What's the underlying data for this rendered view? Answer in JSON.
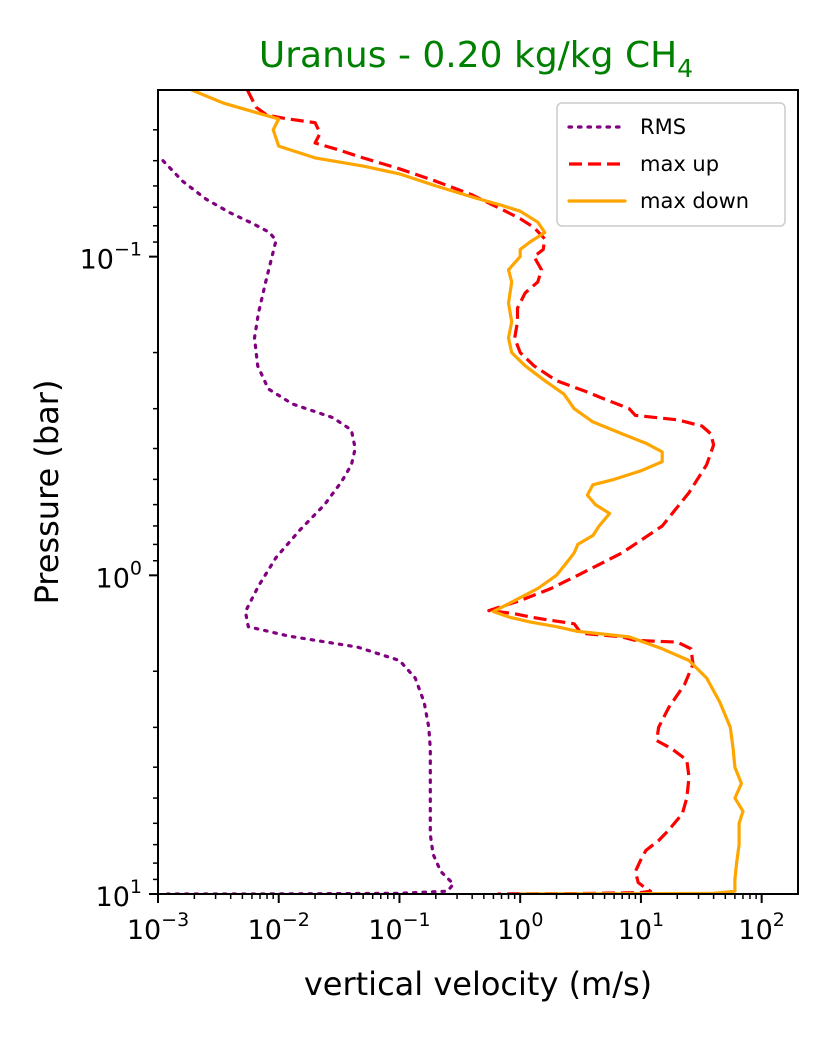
{
  "chart_data": {
    "type": "line",
    "title": "Uranus - 0.20 kg/kg CH",
    "title_subscript": "4",
    "title_color": "#008000",
    "xlabel": "vertical velocity (m/s)",
    "ylabel": "Pressure (bar)",
    "xscale": "log",
    "yscale": "log",
    "y_inverted": true,
    "xlim": [
      0.001,
      200
    ],
    "ylim": [
      10,
      0.03
    ],
    "x_ticks": [
      {
        "value": 0.001,
        "base": "10",
        "exp": "−3"
      },
      {
        "value": 0.01,
        "base": "10",
        "exp": "−2"
      },
      {
        "value": 0.1,
        "base": "10",
        "exp": "−1"
      },
      {
        "value": 1,
        "base": "10",
        "exp": "0"
      },
      {
        "value": 10,
        "base": "10",
        "exp": "1"
      },
      {
        "value": 100,
        "base": "10",
        "exp": "2"
      }
    ],
    "y_ticks": [
      {
        "value": 0.1,
        "base": "10",
        "exp": "−1"
      },
      {
        "value": 1,
        "base": "10",
        "exp": "0"
      },
      {
        "value": 10,
        "base": "10",
        "exp": "1"
      }
    ],
    "legend_position": "top-right",
    "series": [
      {
        "name": "RMS",
        "color": "#800080",
        "style": "dotted",
        "points": [
          [
            0.0011,
            0.05
          ],
          [
            0.0016,
            0.058
          ],
          [
            0.0025,
            0.066
          ],
          [
            0.004,
            0.073
          ],
          [
            0.0062,
            0.079
          ],
          [
            0.0084,
            0.084
          ],
          [
            0.0095,
            0.089
          ],
          [
            0.0088,
            0.1
          ],
          [
            0.0078,
            0.12
          ],
          [
            0.0068,
            0.15
          ],
          [
            0.0063,
            0.18
          ],
          [
            0.0067,
            0.22
          ],
          [
            0.0082,
            0.26
          ],
          [
            0.013,
            0.29
          ],
          [
            0.028,
            0.32
          ],
          [
            0.04,
            0.35
          ],
          [
            0.043,
            0.4
          ],
          [
            0.04,
            0.45
          ],
          [
            0.033,
            0.51
          ],
          [
            0.024,
            0.6
          ],
          [
            0.015,
            0.72
          ],
          [
            0.0095,
            0.88
          ],
          [
            0.0068,
            1.08
          ],
          [
            0.0053,
            1.3
          ],
          [
            0.0056,
            1.45
          ],
          [
            0.012,
            1.55
          ],
          [
            0.045,
            1.68
          ],
          [
            0.1,
            1.85
          ],
          [
            0.135,
            2.1
          ],
          [
            0.16,
            2.5
          ],
          [
            0.175,
            3.0
          ],
          [
            0.18,
            3.5
          ],
          [
            0.18,
            4.5
          ],
          [
            0.18,
            5.5
          ],
          [
            0.18,
            6.5
          ],
          [
            0.19,
            7.5
          ],
          [
            0.22,
            8.5
          ],
          [
            0.28,
            9.3
          ],
          [
            0.25,
            9.8
          ],
          [
            0.1,
            9.95
          ],
          [
            0.01,
            9.99
          ],
          [
            0.0012,
            10.0
          ]
        ]
      },
      {
        "name": "max up",
        "color": "#ff0000",
        "style": "dashed",
        "points": [
          [
            0.0055,
            0.03
          ],
          [
            0.0065,
            0.034
          ],
          [
            0.008,
            0.036
          ],
          [
            0.012,
            0.037
          ],
          [
            0.02,
            0.038
          ],
          [
            0.022,
            0.041
          ],
          [
            0.02,
            0.044
          ],
          [
            0.03,
            0.046
          ],
          [
            0.05,
            0.049
          ],
          [
            0.1,
            0.053
          ],
          [
            0.2,
            0.058
          ],
          [
            0.4,
            0.064
          ],
          [
            0.7,
            0.071
          ],
          [
            1.0,
            0.076
          ],
          [
            1.3,
            0.081
          ],
          [
            1.6,
            0.088
          ],
          [
            1.55,
            0.095
          ],
          [
            1.3,
            0.1
          ],
          [
            1.5,
            0.11
          ],
          [
            1.4,
            0.12
          ],
          [
            1.1,
            0.13
          ],
          [
            0.95,
            0.145
          ],
          [
            0.95,
            0.16
          ],
          [
            0.9,
            0.18
          ],
          [
            1.0,
            0.2
          ],
          [
            1.3,
            0.22
          ],
          [
            2.0,
            0.245
          ],
          [
            3.5,
            0.265
          ],
          [
            5.0,
            0.28
          ],
          [
            8.0,
            0.3
          ],
          [
            9.0,
            0.315
          ],
          [
            20.0,
            0.325
          ],
          [
            32.0,
            0.34
          ],
          [
            38.0,
            0.36
          ],
          [
            40.0,
            0.39
          ],
          [
            35.0,
            0.45
          ],
          [
            25.0,
            0.55
          ],
          [
            15.0,
            0.7
          ],
          [
            7.0,
            0.85
          ],
          [
            3.0,
            1.0
          ],
          [
            1.8,
            1.1
          ],
          [
            1.0,
            1.2
          ],
          [
            0.55,
            1.29
          ],
          [
            0.9,
            1.32
          ],
          [
            1.2,
            1.35
          ],
          [
            1.7,
            1.38
          ],
          [
            2.8,
            1.42
          ],
          [
            3.2,
            1.52
          ],
          [
            7.0,
            1.56
          ],
          [
            9.0,
            1.6
          ],
          [
            20.0,
            1.62
          ],
          [
            26.0,
            1.7
          ],
          [
            27.0,
            1.9
          ],
          [
            23.0,
            2.2
          ],
          [
            17.0,
            2.6
          ],
          [
            14.0,
            3.0
          ],
          [
            13.5,
            3.3
          ],
          [
            18.0,
            3.5
          ],
          [
            24.0,
            3.8
          ],
          [
            25.0,
            4.3
          ],
          [
            24.0,
            5.0
          ],
          [
            22.0,
            5.6
          ],
          [
            17.0,
            6.3
          ],
          [
            14.0,
            6.8
          ],
          [
            11.0,
            7.3
          ],
          [
            10.0,
            7.8
          ],
          [
            9.0,
            8.5
          ],
          [
            9.5,
            9.2
          ],
          [
            11.0,
            9.6
          ],
          [
            12.0,
            9.8
          ],
          [
            10.0,
            9.9
          ],
          [
            3.0,
            9.97
          ],
          [
            0.8,
            9.99
          ],
          [
            0.65,
            10.0
          ]
        ]
      },
      {
        "name": "max down",
        "color": "#ffa500",
        "style": "solid",
        "points": [
          [
            0.0019,
            0.03
          ],
          [
            0.0035,
            0.033
          ],
          [
            0.006,
            0.035
          ],
          [
            0.01,
            0.037
          ],
          [
            0.009,
            0.04
          ],
          [
            0.01,
            0.045
          ],
          [
            0.02,
            0.049
          ],
          [
            0.05,
            0.052
          ],
          [
            0.1,
            0.055
          ],
          [
            0.2,
            0.06
          ],
          [
            0.4,
            0.065
          ],
          [
            0.7,
            0.069
          ],
          [
            1.0,
            0.072
          ],
          [
            1.4,
            0.078
          ],
          [
            1.6,
            0.084
          ],
          [
            1.2,
            0.09
          ],
          [
            1.0,
            0.095
          ],
          [
            1.0,
            0.1
          ],
          [
            0.8,
            0.11
          ],
          [
            0.85,
            0.12
          ],
          [
            0.8,
            0.14
          ],
          [
            0.85,
            0.16
          ],
          [
            0.8,
            0.18
          ],
          [
            0.85,
            0.2
          ],
          [
            1.1,
            0.22
          ],
          [
            1.6,
            0.245
          ],
          [
            2.3,
            0.27
          ],
          [
            2.8,
            0.3
          ],
          [
            4.0,
            0.33
          ],
          [
            7.0,
            0.36
          ],
          [
            11.0,
            0.385
          ],
          [
            15.0,
            0.41
          ],
          [
            15.0,
            0.44
          ],
          [
            10.0,
            0.47
          ],
          [
            6.0,
            0.5
          ],
          [
            4.0,
            0.52
          ],
          [
            3.6,
            0.56
          ],
          [
            4.2,
            0.6
          ],
          [
            5.5,
            0.64
          ],
          [
            4.5,
            0.7
          ],
          [
            4.0,
            0.75
          ],
          [
            3.0,
            0.8
          ],
          [
            2.8,
            0.85
          ],
          [
            2.5,
            0.9
          ],
          [
            2.0,
            1.0
          ],
          [
            1.4,
            1.1
          ],
          [
            0.9,
            1.2
          ],
          [
            0.6,
            1.3
          ],
          [
            0.8,
            1.35
          ],
          [
            1.2,
            1.4
          ],
          [
            2.0,
            1.45
          ],
          [
            3.0,
            1.5
          ],
          [
            8.0,
            1.56
          ],
          [
            15.0,
            1.7
          ],
          [
            25.0,
            1.85
          ],
          [
            35.0,
            2.1
          ],
          [
            45.0,
            2.5
          ],
          [
            55.0,
            3.0
          ],
          [
            58.0,
            3.5
          ],
          [
            60.0,
            4.0
          ],
          [
            68.0,
            4.5
          ],
          [
            60.0,
            5.0
          ],
          [
            70.0,
            5.5
          ],
          [
            65.0,
            6.0
          ],
          [
            65.0,
            7.0
          ],
          [
            62.0,
            8.0
          ],
          [
            60.0,
            9.0
          ],
          [
            60.0,
            9.8
          ],
          [
            40.0,
            9.96
          ],
          [
            5.0,
            9.99
          ],
          [
            1.0,
            10.0
          ]
        ]
      }
    ]
  }
}
